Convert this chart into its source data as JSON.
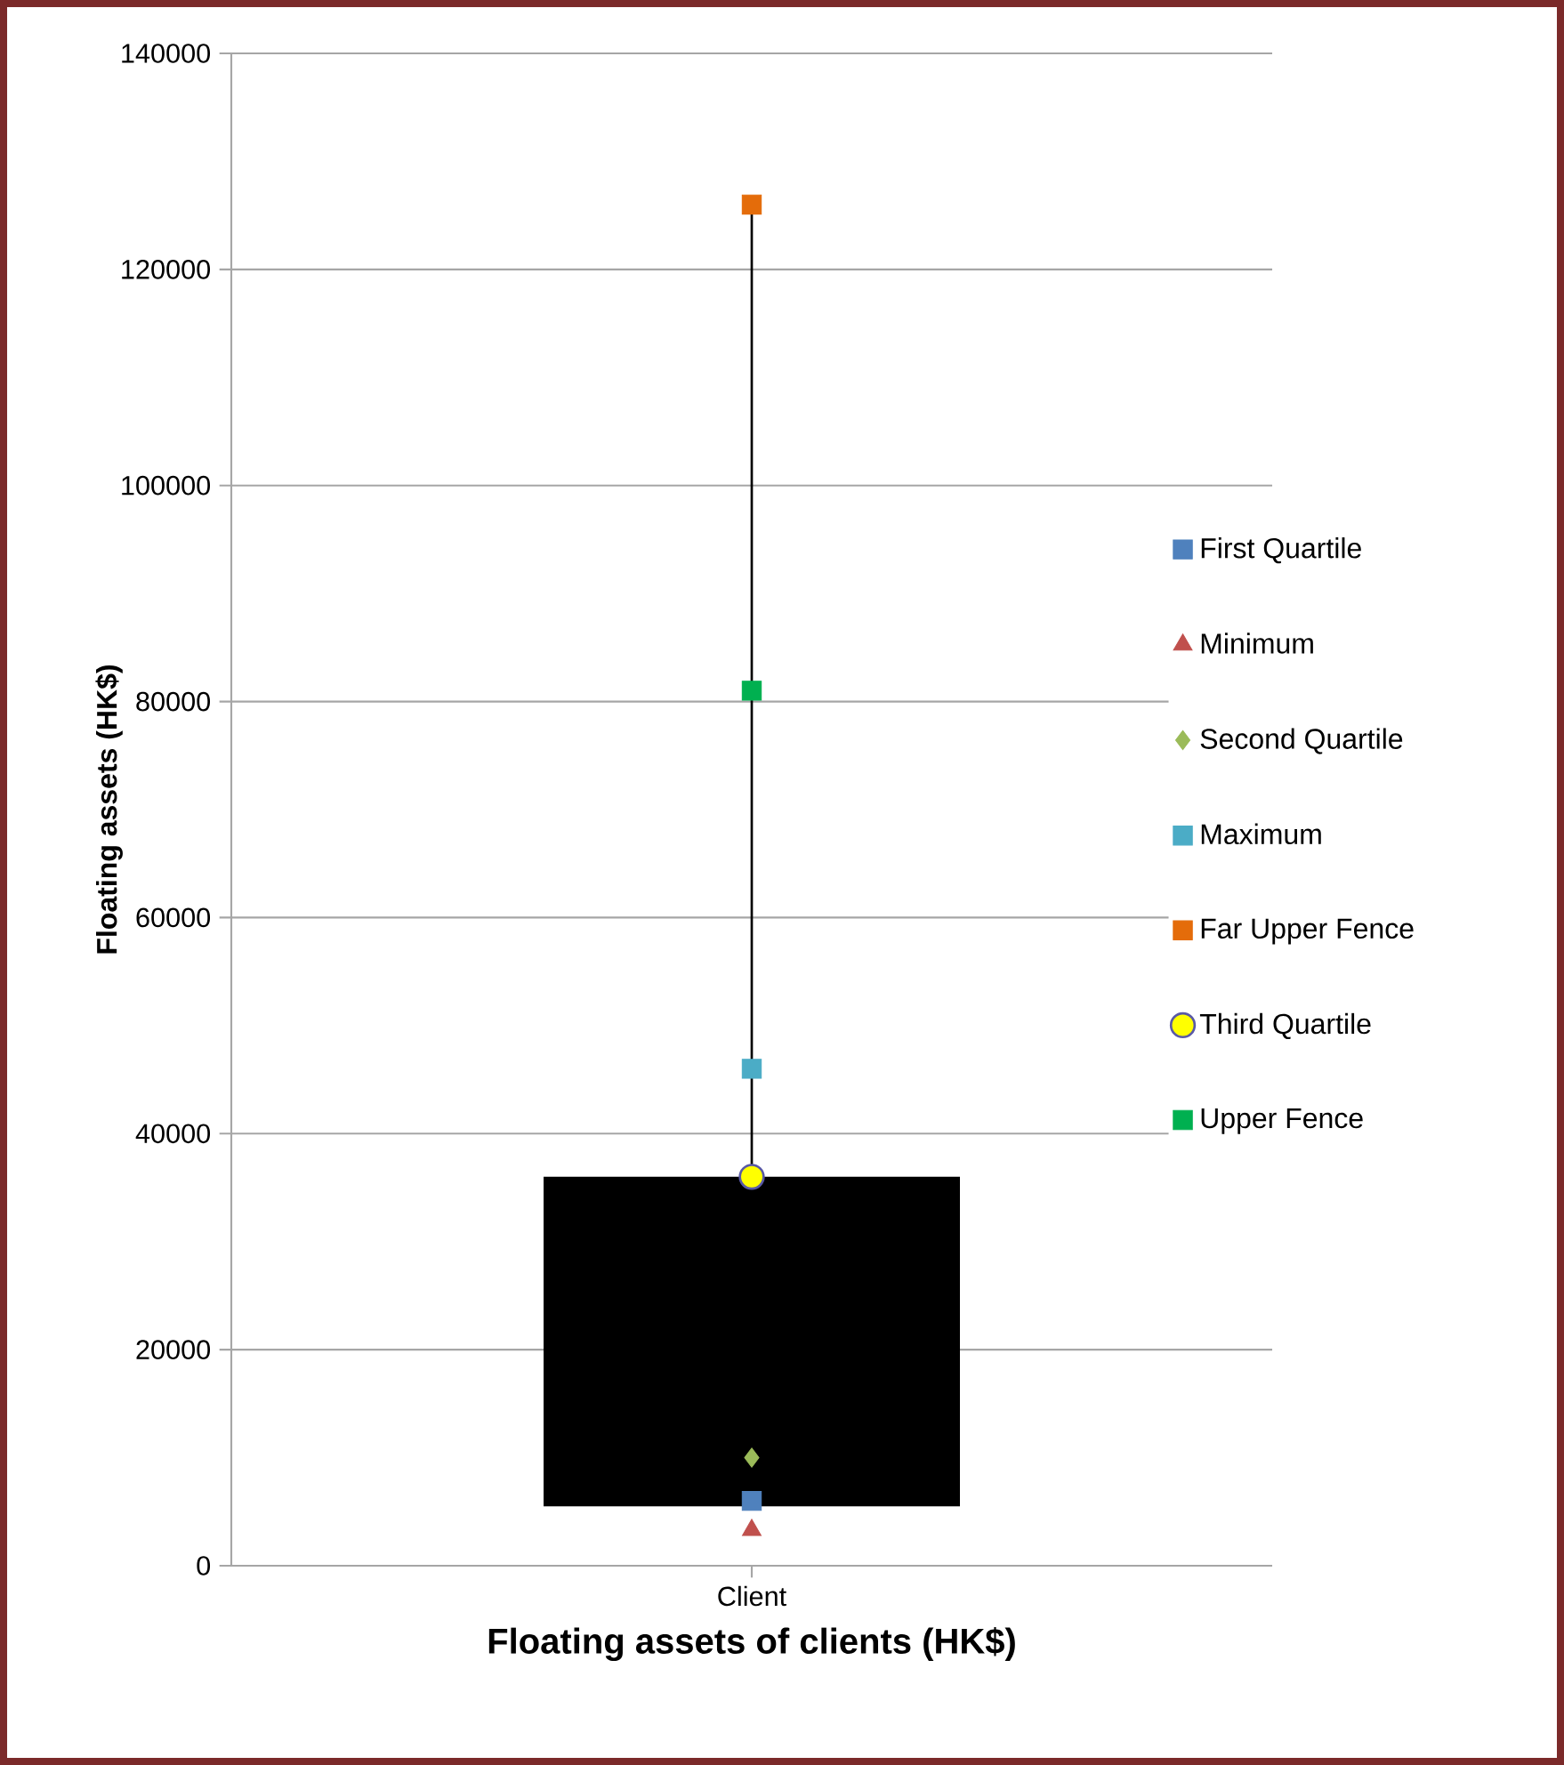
{
  "chart_data": {
    "type": "scatter",
    "xlabel": "Floating assets of clients (HK$)",
    "ylabel": "Floating assets (HK$)",
    "categories": [
      "Client"
    ],
    "ylim": [
      0,
      140000
    ],
    "yticks": [
      0,
      20000,
      40000,
      60000,
      80000,
      100000,
      120000,
      140000
    ],
    "grid": "y",
    "legend": "right",
    "series": [
      {
        "type": "bar",
        "color": "#000000",
        "base": [
          5500
        ],
        "values": [
          30500
        ]
      },
      {
        "type": "line",
        "color": "#000000",
        "x": [
          "Client",
          "Client"
        ],
        "values": [
          36000,
          126000
        ]
      },
      {
        "name": "First Quartile",
        "color": "#4f81bd",
        "marker": "square",
        "values": [
          6000
        ]
      },
      {
        "name": "Minimum",
        "color": "#c0504d",
        "marker": "triangle",
        "values": [
          3300
        ]
      },
      {
        "name": "Second Quartile",
        "color": "#9bbb59",
        "marker": "diamond",
        "values": [
          10000
        ]
      },
      {
        "name": "Maximum",
        "color": "#4bacc6",
        "marker": "square",
        "values": [
          46000
        ]
      },
      {
        "name": "Far Upper Fence",
        "color": "#e46c0a",
        "marker": "square",
        "values": [
          126000
        ]
      },
      {
        "name": "Third Quartile",
        "color": "#ffff00",
        "marker": "circle",
        "values": [
          36000
        ]
      },
      {
        "name": "Upper Fence",
        "color": "#00b050",
        "marker": "square",
        "values": [
          81000
        ]
      }
    ]
  }
}
